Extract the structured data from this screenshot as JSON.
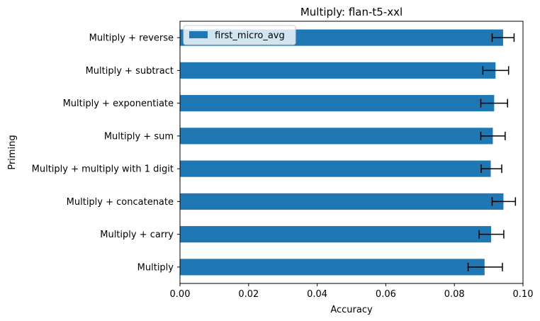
{
  "chart_data": {
    "type": "bar",
    "orientation": "horizontal",
    "title": "Multiply: flan-t5-xxl",
    "xlabel": "Accuracy",
    "ylabel": "Priming",
    "xlim": [
      0,
      0.1
    ],
    "xticks": [
      "0.00",
      "0.02",
      "0.04",
      "0.06",
      "0.08",
      "0.10"
    ],
    "categories": [
      "Multiply",
      "Multiply + carry",
      "Multiply + concatenate",
      "Multiply + multiply with 1 digit",
      "Multiply + sum",
      "Multiply + exponentiate",
      "Multiply + subtract",
      "Multiply + reverse"
    ],
    "series": [
      {
        "name": "first_micro_avg",
        "color": "#1f77b4",
        "values": [
          0.0888,
          0.0907,
          0.0943,
          0.0906,
          0.0912,
          0.0916,
          0.092,
          0.0942
        ],
        "error_low": [
          0.084,
          0.0872,
          0.091,
          0.0878,
          0.0877,
          0.0877,
          0.0883,
          0.091
        ],
        "error_high": [
          0.094,
          0.0944,
          0.0978,
          0.0938,
          0.0948,
          0.0955,
          0.0958,
          0.0974
        ]
      }
    ],
    "legend": {
      "position": "top-left",
      "label": "first_micro_avg"
    },
    "grid": false
  }
}
